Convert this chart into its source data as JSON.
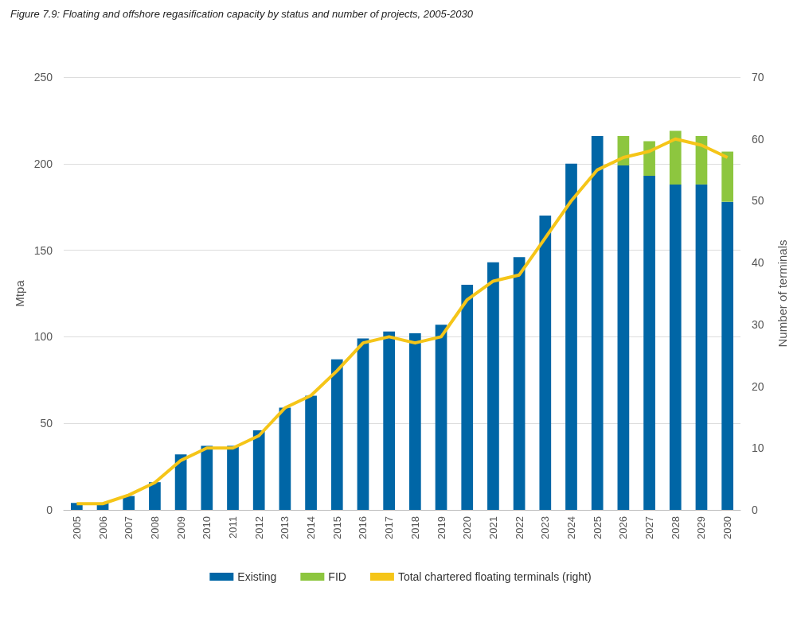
{
  "chart_data": {
    "type": "bar",
    "title": "Figure 7.9: Floating and offshore regasification capacity by status and number of projects, 2005-2030",
    "categories": [
      "2005",
      "2006",
      "2007",
      "2008",
      "2009",
      "2010",
      "2011",
      "2012",
      "2013",
      "2014",
      "2015",
      "2016",
      "2017",
      "2018",
      "2019",
      "2020",
      "2021",
      "2022",
      "2023",
      "2024",
      "2025",
      "2026",
      "2027",
      "2028",
      "2029",
      "2030"
    ],
    "stacked": true,
    "ylabel": "Mtpa",
    "y2label": "Number of terminals",
    "ylim": [
      0,
      250
    ],
    "yticks": [
      0,
      50,
      100,
      150,
      200,
      250
    ],
    "y2lim": [
      0,
      70
    ],
    "y2ticks": [
      0,
      10,
      20,
      30,
      40,
      50,
      60,
      70
    ],
    "grid": "y",
    "legend": "bottom",
    "series": [
      {
        "name": "Existing",
        "color": "#0066a6",
        "values": [
          4,
          4,
          8,
          16,
          32,
          37,
          37,
          46,
          59,
          66,
          87,
          99,
          103,
          102,
          107,
          130,
          143,
          146,
          170,
          200,
          216,
          199,
          193,
          188,
          188,
          178
        ]
      },
      {
        "name": "FID",
        "color": "#8dc63f",
        "values": [
          0,
          0,
          0,
          0,
          0,
          0,
          0,
          0,
          0,
          0,
          0,
          0,
          0,
          0,
          0,
          0,
          0,
          0,
          0,
          0,
          0,
          17,
          20,
          31,
          28,
          29
        ]
      },
      {
        "name": "Total chartered floating terminals (right)",
        "type": "line",
        "axis": "y2",
        "color": "#f5c518",
        "values": [
          1,
          1,
          2.4,
          4.4,
          8,
          10,
          10,
          12,
          16.5,
          18.5,
          22.5,
          27,
          28,
          27,
          28,
          34,
          37,
          38,
          44,
          50,
          55,
          57,
          58,
          60,
          59,
          57
        ]
      }
    ]
  }
}
